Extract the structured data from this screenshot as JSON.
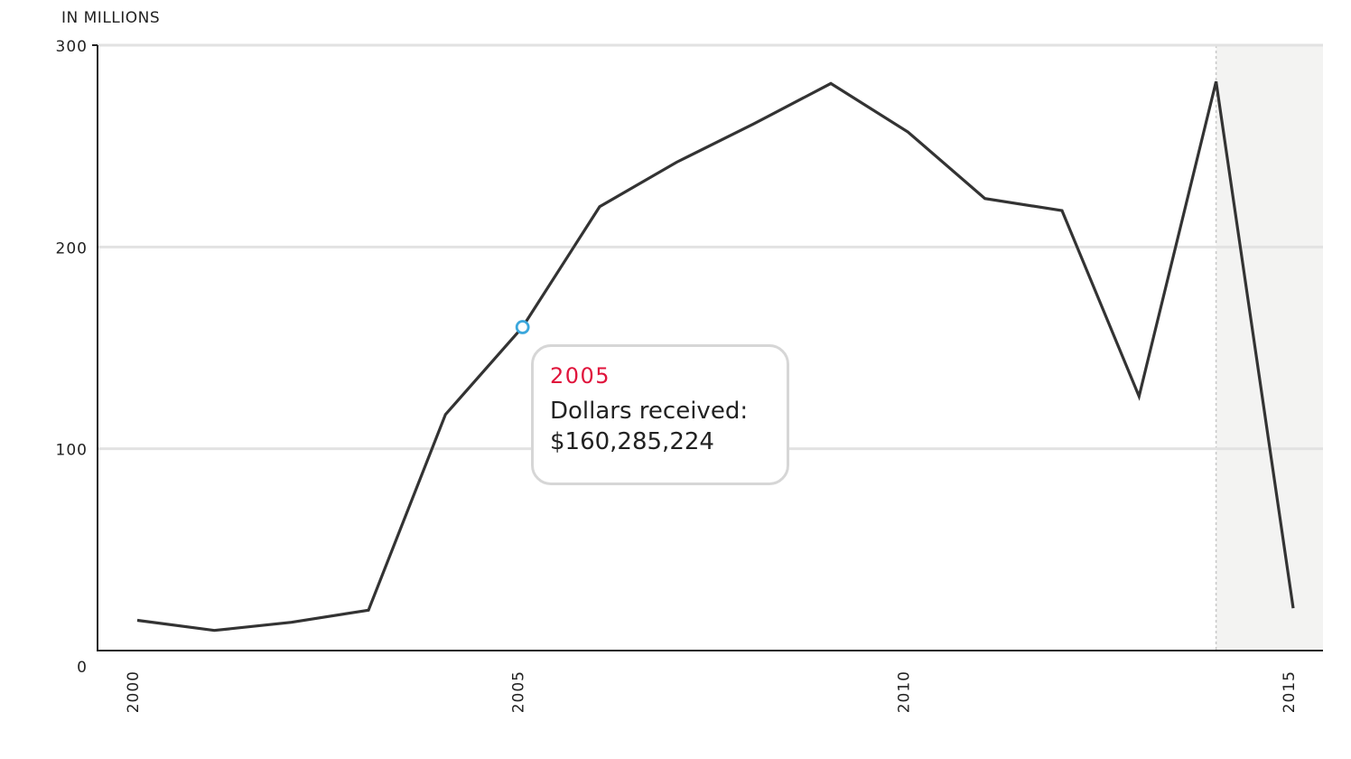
{
  "chart_data": {
    "type": "line",
    "unit_label": "IN MILLIONS",
    "x": [
      2000,
      2001,
      2002,
      2003,
      2004,
      2005,
      2006,
      2007,
      2008,
      2009,
      2010,
      2011,
      2012,
      2013,
      2014,
      2015
    ],
    "series": [
      {
        "values": [
          15,
          10,
          14,
          20,
          117,
          160.285224,
          220,
          242,
          261,
          281,
          257,
          224,
          218,
          126,
          282,
          21
        ]
      }
    ],
    "xlim": [
      1999.5,
      2015.5
    ],
    "ylim": [
      0,
      300
    ],
    "x_ticks": [
      "2000",
      "2005",
      "2010",
      "2015"
    ],
    "y_ticks": [
      "0",
      "100",
      "200",
      "300"
    ],
    "highlight_region": {
      "from": 2014,
      "to": 2015.5
    },
    "line_color": "#333333",
    "marker_color": "#3ba7dc",
    "grid": true
  },
  "tooltip": {
    "year": "2005",
    "label": "Dollars received:",
    "value": "$160,285,224"
  }
}
